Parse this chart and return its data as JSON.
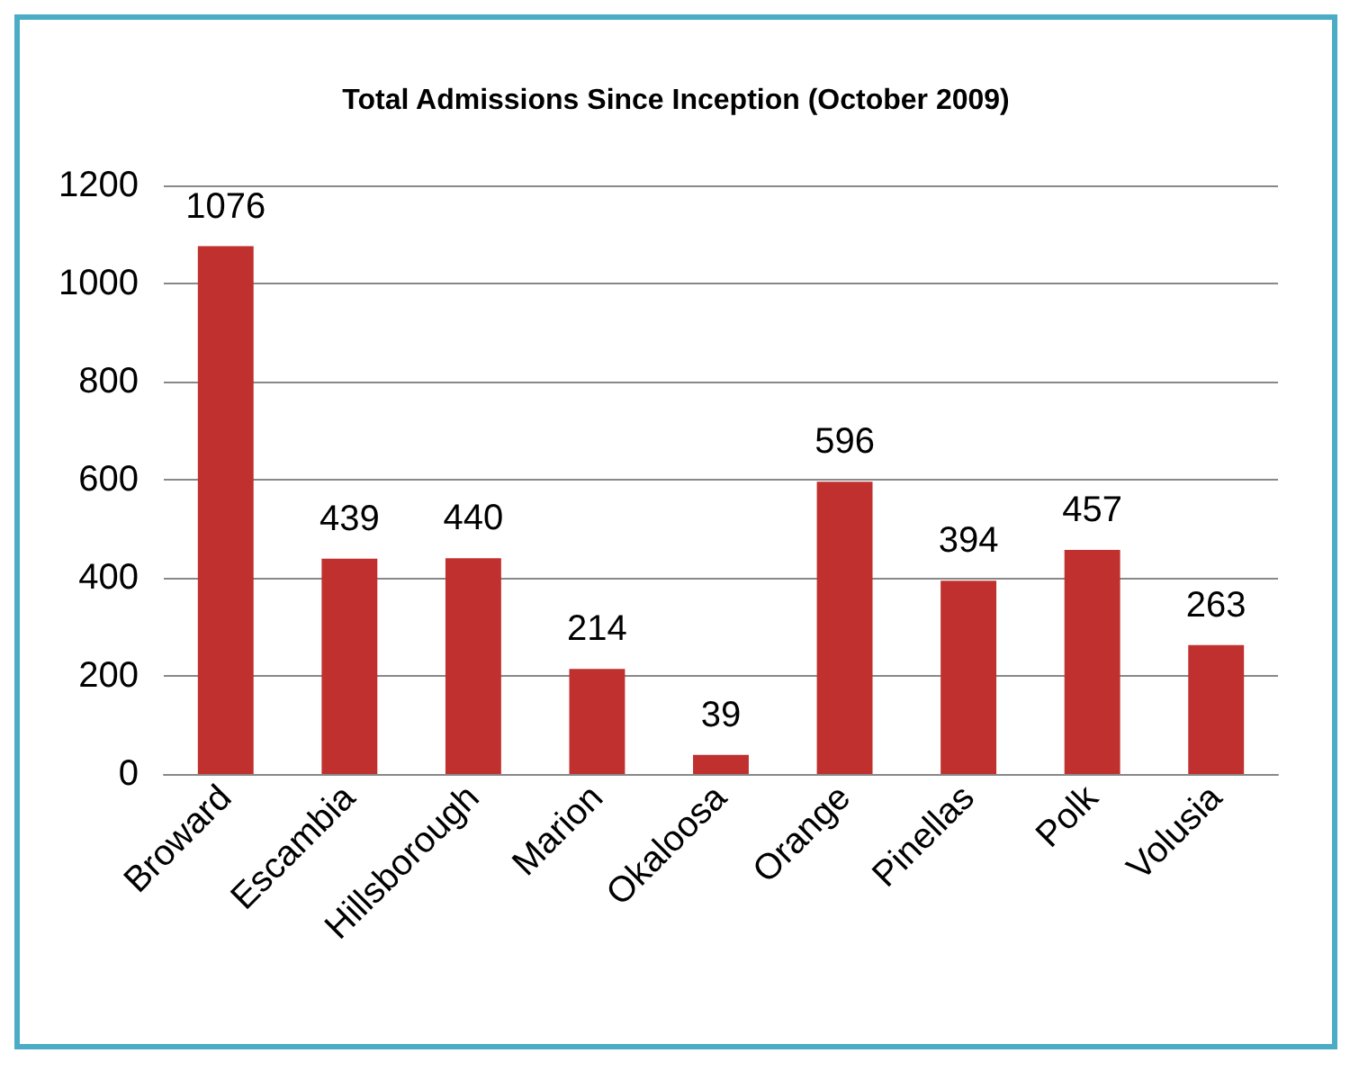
{
  "chart_data": {
    "type": "bar",
    "title": "Total Admissions Since Inception (October 2009)",
    "categories": [
      "Broward",
      "Escambia",
      "Hillsborough",
      "Marion",
      "Okaloosa",
      "Orange",
      "Pinellas",
      "Polk",
      "Volusia"
    ],
    "values": [
      1076,
      439,
      440,
      214,
      39,
      596,
      394,
      457,
      263
    ],
    "color": "#c0302e",
    "ylim": [
      0,
      1200
    ],
    "yticks": [
      0,
      200,
      400,
      600,
      800,
      1000,
      1200
    ],
    "grid": "y",
    "data_labels": true
  }
}
